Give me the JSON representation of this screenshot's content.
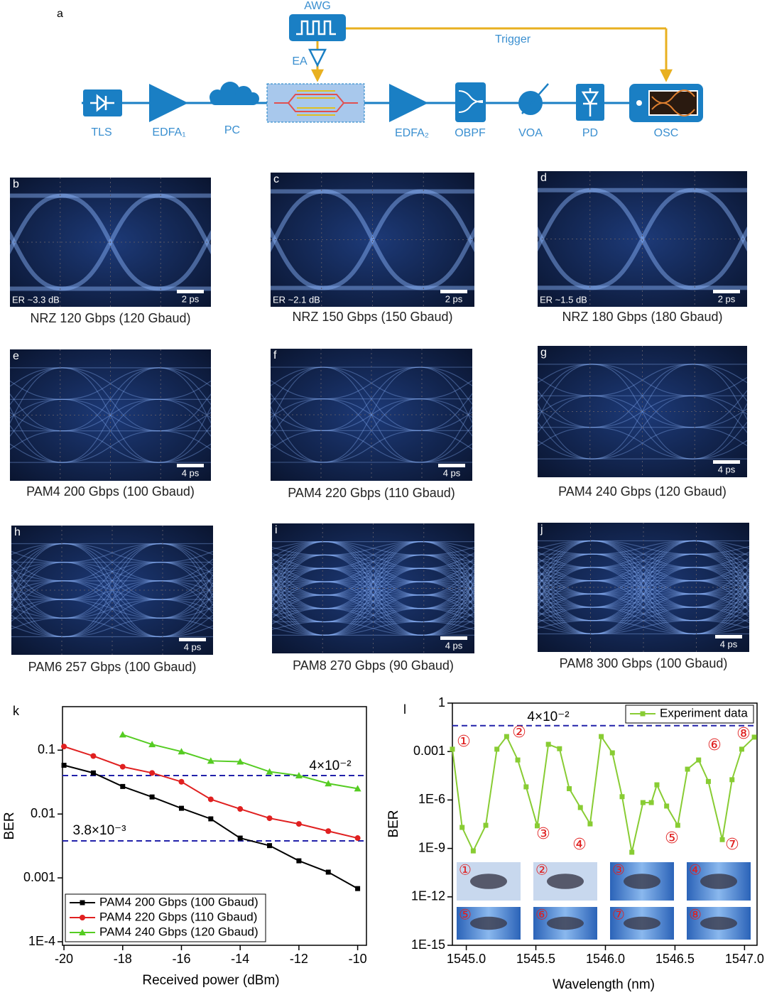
{
  "diagram": {
    "label": "a",
    "awg": "AWG",
    "trigger": "Trigger",
    "ea": "EA",
    "tls": "TLS",
    "edfa1": "EDFA₁",
    "pc": "PC",
    "edfa2": "EDFA₂",
    "obpf": "OBPF",
    "voa": "VOA",
    "pd": "PD",
    "osc": "OSC"
  },
  "eyes": [
    {
      "label": "b",
      "caption": "NRZ 120 Gbps (120 Gbaud)",
      "er": "ER ~3.3 dB",
      "scale": "2 ps"
    },
    {
      "label": "c",
      "caption": "NRZ 150 Gbps (150 Gbaud)",
      "er": "ER ~2.1 dB",
      "scale": "2 ps"
    },
    {
      "label": "d",
      "caption": "NRZ 180 Gbps (180 Gbaud)",
      "er": "ER ~1.5 dB",
      "scale": "2 ps"
    },
    {
      "label": "e",
      "caption": "PAM4 200 Gbps (100 Gbaud)",
      "scale": "4 ps"
    },
    {
      "label": "f",
      "caption": "PAM4 220 Gbps (110 Gbaud)",
      "scale": "4 ps"
    },
    {
      "label": "g",
      "caption": "PAM4 240 Gbps (120 Gbaud)",
      "scale": "4 ps"
    },
    {
      "label": "h",
      "caption": "PAM6 257 Gbps (100 Gbaud)",
      "scale": "4 ps"
    },
    {
      "label": "i",
      "caption": "PAM8 270 Gbps (90 Gbaud)",
      "scale": "4 ps"
    },
    {
      "label": "j",
      "caption": "PAM8 300 Gbps (100 Gbaud)",
      "scale": "4 ps"
    }
  ],
  "chart_data": [
    {
      "type": "line",
      "label": "k",
      "x_label": "Received power (dBm)",
      "y_label": "BER",
      "log_y": true,
      "xlim": [
        -20.05,
        -9.7
      ],
      "xticks": [
        -20,
        -18,
        -16,
        -14,
        -12,
        -10
      ],
      "ylim": [
        8.8e-05,
        0.48
      ],
      "yticks": [
        0.1,
        0.01,
        0.001,
        {
          "value": 0.0001,
          "label": "1E-4"
        }
      ],
      "hlines": [
        {
          "value": 0.04,
          "label": "4×10⁻²",
          "color": "#2222aa"
        },
        {
          "value": 0.0038,
          "label": "3.8×10⁻³",
          "color": "#2222aa"
        }
      ],
      "legend": "lower left",
      "series": [
        {
          "name": "PAM4 200 Gbps (100 Gbaud)",
          "color": "#000000",
          "marker": "square",
          "x": [
            -20,
            -19,
            -18,
            -17,
            -16,
            -15,
            -14,
            -13,
            -12,
            -11,
            -10
          ],
          "values": [
            0.058,
            0.044,
            0.027,
            0.0185,
            0.0123,
            0.0084,
            0.0042,
            0.0032,
            0.00185,
            0.00123,
            0.00068
          ]
        },
        {
          "name": "PAM4 220 Gbps (110 Gbaud)",
          "color": "#e02020",
          "marker": "circle",
          "x": [
            -20,
            -19,
            -18,
            -17,
            -16,
            -15,
            -14,
            -13,
            -12,
            -11,
            -10
          ],
          "values": [
            0.114,
            0.081,
            0.055,
            0.044,
            0.032,
            0.017,
            0.012,
            0.0086,
            0.007,
            0.0054,
            0.0042
          ]
        },
        {
          "name": "PAM4 240 Gbps (120 Gbaud)",
          "color": "#55cc22",
          "marker": "triangle",
          "x": [
            -18,
            -17,
            -16,
            -15,
            -14,
            -13,
            -12,
            -11,
            -10
          ],
          "values": [
            0.175,
            0.123,
            0.095,
            0.068,
            0.066,
            0.046,
            0.04,
            0.03,
            0.025
          ]
        }
      ]
    },
    {
      "type": "line",
      "label": "l",
      "x_label": "Wavelength (nm)",
      "y_label": "BER",
      "log_y": true,
      "xlim": [
        1544.9,
        1547.09
      ],
      "xticks": [
        {
          "value": 1545.0,
          "label": "1545.0"
        },
        {
          "value": 1545.5,
          "label": "1545.5"
        },
        {
          "value": 1546.0,
          "label": "1546.0"
        },
        {
          "value": 1546.5,
          "label": "1546.5"
        },
        {
          "value": 1547.0,
          "label": "1547.0"
        }
      ],
      "ylim": [
        1e-15,
        1
      ],
      "yticks": [
        1,
        0.001,
        {
          "value": 1e-06,
          "label": "1E-6"
        },
        {
          "value": 1e-09,
          "label": "1E-9"
        },
        {
          "value": 1e-12,
          "label": "1E-12"
        },
        {
          "value": 1e-15,
          "label": "1E-15"
        }
      ],
      "hlines": [
        {
          "value": 0.04,
          "label": "4×10⁻²",
          "color": "#2222aa"
        }
      ],
      "legend": "upper right",
      "x": [
        1544.9,
        1544.97,
        1545.05,
        1545.14,
        1545.22,
        1545.29,
        1545.37,
        1545.43,
        1545.51,
        1545.59,
        1545.67,
        1545.74,
        1545.82,
        1545.89,
        1545.97,
        1546.05,
        1546.12,
        1546.19,
        1546.27,
        1546.33,
        1546.37,
        1546.44,
        1546.52,
        1546.59,
        1546.67,
        1546.74,
        1546.84,
        1546.91,
        1546.98,
        1547.07
      ],
      "series": [
        {
          "name": "Experiment data",
          "color": "#88cc33",
          "marker": "square",
          "values": [
            0.0014,
            2e-08,
            7e-10,
            2.7e-08,
            0.0014,
            0.0085,
            0.0003,
            6.5e-06,
            2.5e-08,
            0.0028,
            0.0015,
            5e-06,
            3.4e-07,
            3.3e-08,
            0.0085,
            0.00083,
            1.6e-06,
            5.8e-10,
            6.9e-07,
            6.9e-07,
            8.7e-06,
            4.2e-07,
            2.7e-08,
            8.1e-05,
            0.0003,
            1.4e-05,
            3.5e-09,
            1.8e-05,
            0.0014,
            0.0078
          ]
        }
      ],
      "annotations": [
        "①",
        "②",
        "③",
        "④",
        "⑤",
        "⑥",
        "⑦",
        "⑧"
      ]
    }
  ]
}
